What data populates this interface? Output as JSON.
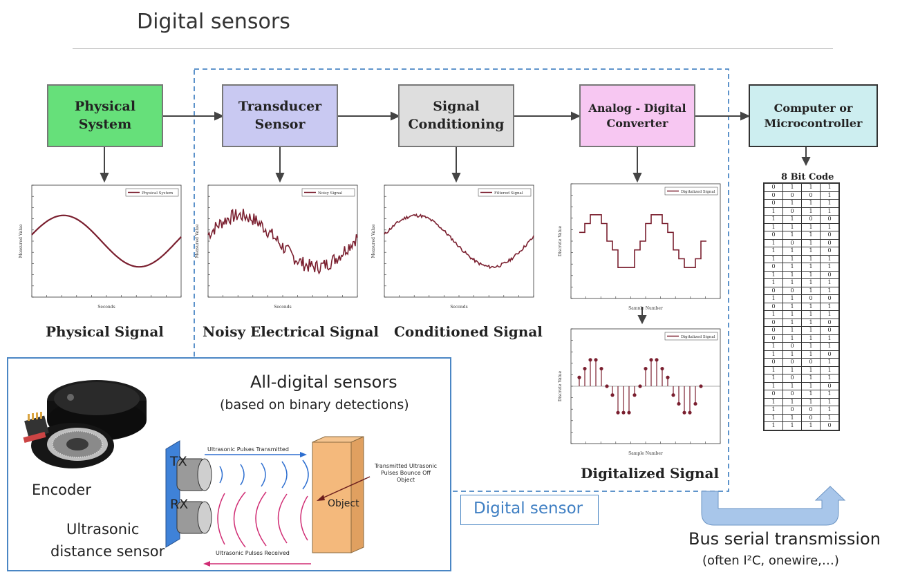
{
  "title": "Digital sensors",
  "blocks": {
    "physical": [
      "Physical",
      "System"
    ],
    "transducer": [
      "Transducer",
      "Sensor"
    ],
    "conditioning": [
      "Signal",
      "Conditioning"
    ],
    "adc": [
      "Analog - Digital",
      "Converter"
    ],
    "computer": [
      "Computer or",
      "Microcontroller"
    ]
  },
  "captions": {
    "physical": "Physical Signal",
    "noisy": "Noisy Electrical Signal",
    "conditioned": "Conditioned Signal",
    "digitalized": "Digitalized Signal"
  },
  "plots": {
    "physical": {
      "legend": "Physical System",
      "ylabel": "Measured Value",
      "xlabel": "Seconds"
    },
    "noisy": {
      "legend": "Noisy Signal",
      "ylabel": "Measured Value",
      "xlabel": "Seconds"
    },
    "conditioned": {
      "legend": "Filtered Signal",
      "ylabel": "Measured Value",
      "xlabel": "Seconds"
    },
    "digital_step": {
      "legend": "Digitalized Signal",
      "ylabel": "Discrete Value",
      "xlabel": "Sample Number"
    },
    "digital_stem": {
      "legend": "Digitalized Signal",
      "ylabel": "Discrete Value",
      "xlabel": "Sample Number"
    }
  },
  "code": {
    "title": "8 Bit Code",
    "rows": [
      [
        "0",
        "1",
        "1",
        "1"
      ],
      [
        "0",
        "0",
        "0",
        "1"
      ],
      [
        "0",
        "1",
        "1",
        "1"
      ],
      [
        "1",
        "0",
        "1",
        "1"
      ],
      [
        "1",
        "1",
        "0",
        "0"
      ],
      [
        "1",
        "1",
        "1",
        "1"
      ],
      [
        "0",
        "1",
        "1",
        "0"
      ],
      [
        "1",
        "0",
        "1",
        "0"
      ],
      [
        "1",
        "1",
        "1",
        "0"
      ],
      [
        "1",
        "1",
        "1",
        "1"
      ],
      [
        "0",
        "1",
        "1",
        "1"
      ],
      [
        "1",
        "1",
        "1",
        "0"
      ],
      [
        "1",
        "1",
        "1",
        "1"
      ],
      [
        "0",
        "0",
        "1",
        "1"
      ],
      [
        "1",
        "1",
        "0",
        "0"
      ],
      [
        "0",
        "1",
        "1",
        "1"
      ],
      [
        "1",
        "1",
        "1",
        "1"
      ],
      [
        "0",
        "1",
        "1",
        "0"
      ],
      [
        "0",
        "1",
        "1",
        "0"
      ],
      [
        "0",
        "1",
        "1",
        "1"
      ],
      [
        "1",
        "0",
        "1",
        "1"
      ],
      [
        "1",
        "1",
        "1",
        "0"
      ],
      [
        "0",
        "0",
        "0",
        "1"
      ],
      [
        "1",
        "1",
        "1",
        "1"
      ],
      [
        "1",
        "0",
        "1",
        "1"
      ],
      [
        "1",
        "1",
        "1",
        "0"
      ],
      [
        "0",
        "0",
        "1",
        "1"
      ],
      [
        "1",
        "1",
        "1",
        "1"
      ],
      [
        "1",
        "0",
        "0",
        "1"
      ],
      [
        "1",
        "1",
        "0",
        "1"
      ],
      [
        "1",
        "1",
        "1",
        "0"
      ]
    ]
  },
  "labels": {
    "digital_sensor": "Digital sensor",
    "bus_line1": "Bus serial transmission",
    "bus_line2": "(often I²C, onewire,…)",
    "all_digital_title": "All-digital sensors",
    "all_digital_sub": "(based on binary detections)",
    "encoder": "Encoder",
    "ultra_line1": "Ultrasonic",
    "ultra_line2": "distance sensor",
    "tx": "TX",
    "rx": "RX",
    "object": "Object",
    "pulses_tx": "Ultrasonic Pulses Transmitted",
    "pulses_rx": "Ultrasonic Pulses Received",
    "bounce": "Transmitted Ultrasonic Pulses Bounce Off Object"
  },
  "colors": {
    "physical": "#66e07a",
    "transducer": "#c9c9f2",
    "conditioning": "#dedede",
    "adc": "#f7c7f2",
    "computer": "#cdeef0",
    "signal": "#7a1f2f",
    "dashed": "#4a86c4",
    "bus": "#a8c6ea"
  }
}
